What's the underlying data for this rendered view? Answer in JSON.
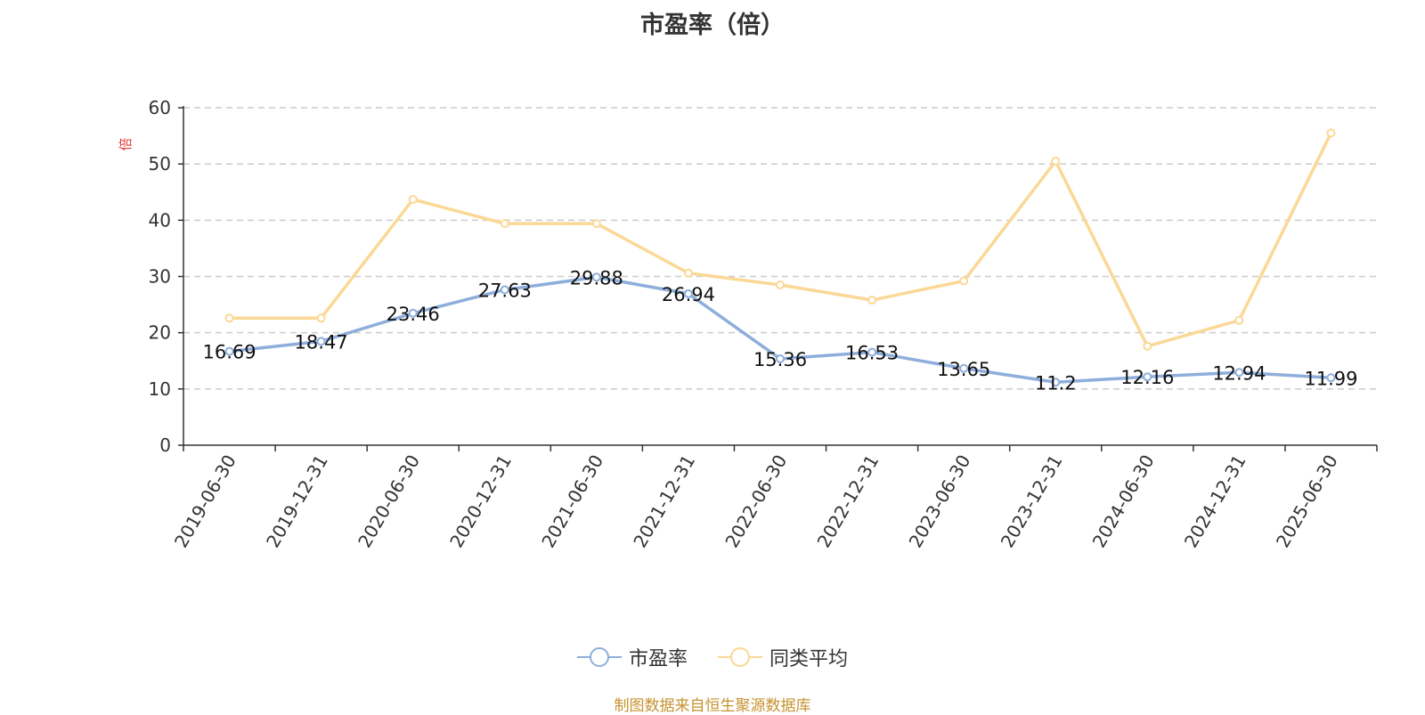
{
  "chart_data": {
    "type": "line",
    "title": "市盈率（倍）",
    "ylabel": "倍",
    "categories": [
      "2019-06-30",
      "2019-12-31",
      "2020-06-30",
      "2020-12-31",
      "2021-06-30",
      "2021-12-31",
      "2022-06-30",
      "2022-12-31",
      "2023-06-30",
      "2023-12-31",
      "2024-06-30",
      "2024-12-31",
      "2025-06-30"
    ],
    "ylim": [
      0,
      60
    ],
    "yticks": [
      0,
      10,
      20,
      30,
      40,
      50,
      60
    ],
    "grid": true,
    "legend_position": "bottom",
    "series": [
      {
        "name": "市盈率",
        "color": "#8eaedb",
        "show_labels": true,
        "values": [
          16.69,
          18.47,
          23.46,
          27.63,
          29.88,
          26.94,
          15.36,
          16.53,
          13.65,
          11.2,
          12.16,
          12.94,
          11.99
        ]
      },
      {
        "name": "同类平均",
        "color": "#fbd896",
        "show_labels": false,
        "values": [
          22.6,
          22.6,
          43.7,
          39.4,
          39.4,
          30.6,
          28.5,
          25.8,
          29.2,
          50.5,
          17.6,
          22.2,
          55.5
        ]
      }
    ]
  },
  "source_note": "制图数据来自恒生聚源数据库"
}
